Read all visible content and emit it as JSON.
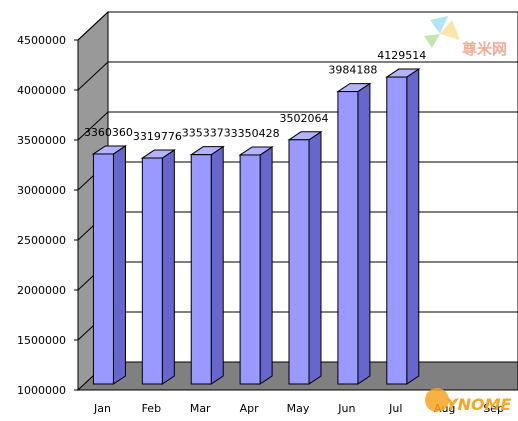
{
  "chart_data": {
    "type": "bar",
    "style": "3d",
    "title": "",
    "xlabel": "",
    "ylabel": "",
    "categories": [
      "Jan",
      "Feb",
      "Mar",
      "Apr",
      "May",
      "Jun",
      "Jul",
      "Aug",
      "Sep"
    ],
    "values": [
      3360360,
      3319776,
      3353373,
      3350428,
      3502064,
      3984188,
      4129514,
      null,
      null
    ],
    "ylim": [
      1000000,
      4500000
    ],
    "yticks": [
      1000000,
      1500000,
      2000000,
      2500000,
      3000000,
      3500000,
      4000000,
      4500000
    ],
    "grid": true,
    "legend": "none",
    "colors": {
      "bar_front": "#9999ff",
      "bar_side": "#6666cc",
      "bar_top": "#b3b3ff",
      "wall_left": "#999999",
      "floor": "#808080",
      "plot_back": "#ffffff",
      "outline": "#000000"
    }
  },
  "watermarks": {
    "top_right_text": "尊米网",
    "bottom_right_text": "YNOME"
  }
}
